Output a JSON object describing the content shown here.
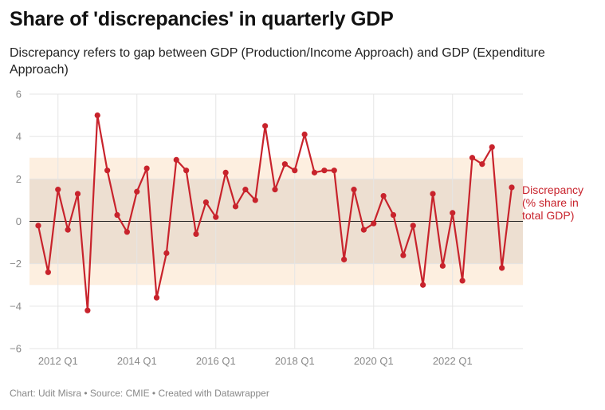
{
  "title": "Share of 'discrepancies' in quarterly GDP",
  "subtitle": "Discrepancy refers to gap between GDP (Production/Income Approach) and GDP (Expenditure Approach)",
  "footer": "Chart: Udit Misra • Source: CMIE • Created with Datawrapper",
  "colors": {
    "line": "#c8232c",
    "band_outer": "#fdefe0",
    "band_inner": "#eddfd1",
    "grid": "#e5e5e5",
    "zero_line": "#222222"
  },
  "chart_data": {
    "type": "line",
    "title": "Share of 'discrepancies' in quarterly GDP",
    "subtitle": "Discrepancy refers to gap between GDP (Production/Income Approach) and GDP (Expenditure Approach)",
    "xlabel": "",
    "ylabel": "",
    "ylim": [
      -6,
      6
    ],
    "yticks": [
      6,
      4,
      2,
      0,
      -2,
      -4,
      -6
    ],
    "ytick_labels": [
      "6",
      "4",
      "2",
      "0",
      "−2",
      "−4",
      "−6"
    ],
    "xticks": [
      "2012 Q1",
      "2014 Q1",
      "2016 Q1",
      "2018 Q1",
      "2020 Q1",
      "2022 Q1"
    ],
    "grid": true,
    "bands": [
      {
        "from": -3,
        "to": 3,
        "shade": "light"
      },
      {
        "from": -2,
        "to": 2,
        "shade": "dark"
      }
    ],
    "x": [
      "2011 Q3",
      "2011 Q4",
      "2012 Q1",
      "2012 Q2",
      "2012 Q3",
      "2012 Q4",
      "2013 Q1",
      "2013 Q2",
      "2013 Q3",
      "2013 Q4",
      "2014 Q1",
      "2014 Q2",
      "2014 Q3",
      "2014 Q4",
      "2015 Q1",
      "2015 Q2",
      "2015 Q3",
      "2015 Q4",
      "2016 Q1",
      "2016 Q2",
      "2016 Q3",
      "2016 Q4",
      "2017 Q1",
      "2017 Q2",
      "2017 Q3",
      "2017 Q4",
      "2018 Q1",
      "2018 Q2",
      "2018 Q3",
      "2018 Q4",
      "2019 Q1",
      "2019 Q2",
      "2019 Q3",
      "2019 Q4",
      "2020 Q1",
      "2020 Q2",
      "2020 Q3",
      "2020 Q4",
      "2021 Q1",
      "2021 Q2",
      "2021 Q3",
      "2021 Q4",
      "2022 Q1",
      "2022 Q2",
      "2022 Q3",
      "2022 Q4",
      "2023 Q1",
      "2023 Q2",
      "2023 Q3"
    ],
    "series": [
      {
        "name": "Discrepancy (% share in total GDP)",
        "label_lines": [
          "Discrepancy",
          "(% share in",
          "total GDP)"
        ],
        "values": [
          -0.2,
          -2.4,
          1.5,
          -0.4,
          1.3,
          -4.2,
          5.0,
          2.4,
          0.3,
          -0.5,
          1.4,
          2.5,
          -3.6,
          -1.5,
          2.9,
          2.4,
          -0.6,
          0.9,
          0.2,
          2.3,
          0.7,
          1.5,
          1.0,
          4.5,
          1.5,
          2.7,
          2.4,
          4.1,
          2.3,
          2.4,
          2.4,
          -1.8,
          1.5,
          -0.4,
          -0.1,
          1.2,
          0.3,
          -1.6,
          -0.2,
          -3.0,
          1.3,
          -2.1,
          0.4,
          -2.8,
          3.0,
          2.7,
          3.5,
          -2.2,
          1.6
        ]
      }
    ]
  }
}
